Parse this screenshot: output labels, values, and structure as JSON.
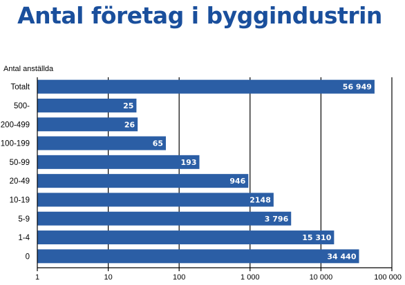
{
  "chart_data": {
    "type": "bar",
    "orientation": "horizontal",
    "title": "Antal företag i byggindustrin",
    "ylabel": "Antal anställda",
    "xlabel": "",
    "xscale": "log",
    "xlim": [
      1,
      100000
    ],
    "x_ticks": [
      1,
      10,
      100,
      1000,
      10000,
      100000
    ],
    "x_tick_labels": [
      "1",
      "10",
      "100",
      "1 000",
      "10 000",
      "100 000"
    ],
    "grid": "vertical",
    "legend": "none",
    "categories": [
      "Totalt",
      "500-",
      "200-499",
      "100-199",
      "50-99",
      "20-49",
      "10-19",
      "5-9",
      "1-4",
      "0"
    ],
    "values": [
      56949,
      25,
      26,
      65,
      193,
      946,
      2148,
      3796,
      15310,
      34440
    ],
    "value_labels": [
      "56 949",
      "25",
      "26",
      "65",
      "193",
      "946",
      "2148",
      "3 796",
      "15 310",
      "34 440"
    ],
    "colors": {
      "bar": "#2b5ea5",
      "title": "#1a4f9c",
      "value_text": "#ffffff",
      "grid": "#000000",
      "text": "#000000"
    }
  }
}
